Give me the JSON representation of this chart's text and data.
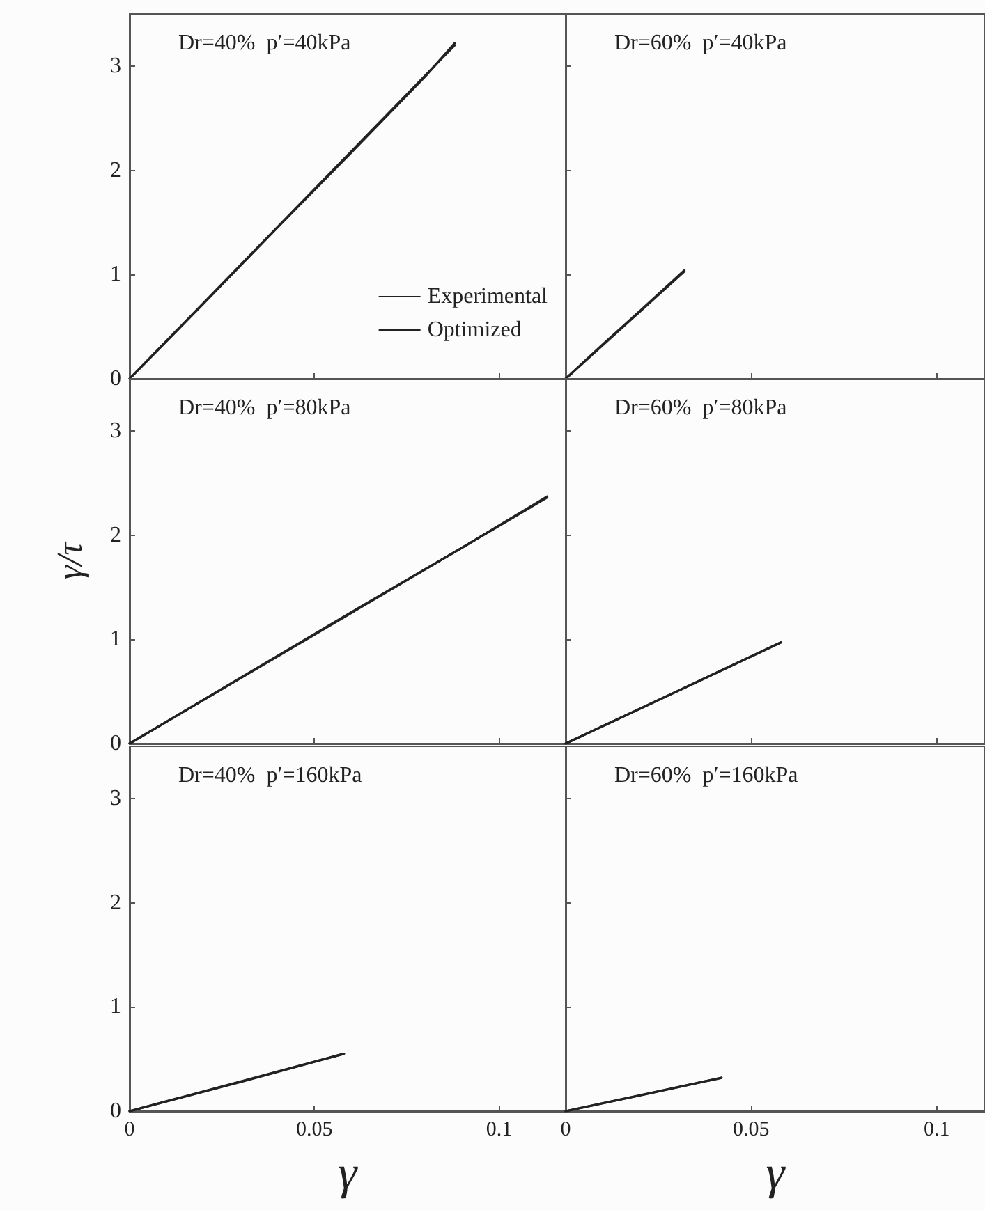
{
  "chart_data": [
    {
      "type": "line",
      "title": "Dr=40%  p′=40kPa",
      "xlim": [
        0,
        0.118
      ],
      "xticks": [
        0,
        0.05,
        0.1
      ],
      "ylim": [
        0,
        3.5
      ],
      "yticks": [
        0,
        1,
        2,
        3
      ],
      "tick_labels": "y",
      "legend": "bottom right",
      "grid": false,
      "line_style": "solid",
      "series": [
        {
          "name": "Experimental",
          "color": "#222222",
          "x": [
            0,
            0.02,
            0.04,
            0.06,
            0.08,
            0.088
          ],
          "values": [
            0,
            0.72,
            1.45,
            2.17,
            2.9,
            3.22
          ]
        },
        {
          "name": "Optimized",
          "color": "#222222",
          "x": [
            0,
            0.088
          ],
          "values": [
            0,
            3.2
          ]
        }
      ]
    },
    {
      "type": "line",
      "title": "Dr=60%  p′=40kPa",
      "xlim": [
        0,
        0.113
      ],
      "xticks": [
        0,
        0.05,
        0.1
      ],
      "ylim": [
        0,
        3.5
      ],
      "yticks": [
        0,
        1,
        2,
        3
      ],
      "tick_labels": false,
      "grid": false,
      "line_style": "solid",
      "series": [
        {
          "color": "#222222",
          "x": [
            0,
            0.01,
            0.02,
            0.032
          ],
          "values": [
            0,
            0.33,
            0.65,
            1.04
          ]
        },
        {
          "color": "#222222",
          "x": [
            0,
            0.032
          ],
          "values": [
            0,
            1.03
          ]
        }
      ]
    },
    {
      "type": "line",
      "title": "Dr=40%  p′=80kPa",
      "ylabel": "γ/τ",
      "xlim": [
        0,
        0.118
      ],
      "xticks": [
        0,
        0.05,
        0.1
      ],
      "ylim": [
        0,
        3.5
      ],
      "yticks": [
        0,
        1,
        2,
        3
      ],
      "tick_labels": "y",
      "grid": false,
      "line_style": "solid",
      "series": [
        {
          "color": "#222222",
          "x": [
            0,
            0.03,
            0.06,
            0.09,
            0.113
          ],
          "values": [
            0,
            0.63,
            1.26,
            1.88,
            2.37
          ]
        },
        {
          "color": "#222222",
          "x": [
            0,
            0.113
          ],
          "values": [
            0,
            2.36
          ]
        }
      ]
    },
    {
      "type": "line",
      "title": "Dr=60%  p′=80kPa",
      "xlim": [
        0,
        0.113
      ],
      "xticks": [
        0,
        0.05,
        0.1
      ],
      "ylim": [
        0,
        3.5
      ],
      "yticks": [
        0,
        1,
        2,
        3
      ],
      "tick_labels": false,
      "grid": false,
      "line_style": "solid",
      "series": [
        {
          "color": "#222222",
          "x": [
            0,
            0.03,
            0.058
          ],
          "values": [
            0,
            0.5,
            0.97
          ]
        },
        {
          "color": "#222222",
          "x": [
            0,
            0.058
          ],
          "values": [
            0,
            0.97
          ]
        }
      ]
    },
    {
      "type": "line",
      "title": "Dr=40%  p′=160kPa",
      "xlabel": "γ",
      "xlim": [
        0,
        0.118
      ],
      "xticks": [
        0,
        0.05,
        0.1
      ],
      "ylim": [
        0,
        3.5
      ],
      "yticks": [
        0,
        1,
        2,
        3
      ],
      "grid": false,
      "line_style": "solid",
      "series": [
        {
          "color": "#222222",
          "x": [
            0,
            0.03,
            0.058
          ],
          "values": [
            0,
            0.28,
            0.55
          ]
        },
        {
          "color": "#222222",
          "x": [
            0,
            0.058
          ],
          "values": [
            0,
            0.55
          ]
        }
      ]
    },
    {
      "type": "line",
      "title": "Dr=60%  p′=160kPa",
      "xlabel": "γ",
      "xlim": [
        0,
        0.113
      ],
      "xticks": [
        0,
        0.05,
        0.1
      ],
      "ylim": [
        0,
        3.5
      ],
      "yticks": [
        0,
        1,
        2,
        3
      ],
      "tick_labels": "x",
      "grid": false,
      "line_style": "solid",
      "series": [
        {
          "color": "#222222",
          "x": [
            0,
            0.02,
            0.042
          ],
          "values": [
            0,
            0.15,
            0.32
          ]
        },
        {
          "color": "#222222",
          "x": [
            0,
            0.042
          ],
          "values": [
            0,
            0.32
          ]
        }
      ]
    }
  ]
}
